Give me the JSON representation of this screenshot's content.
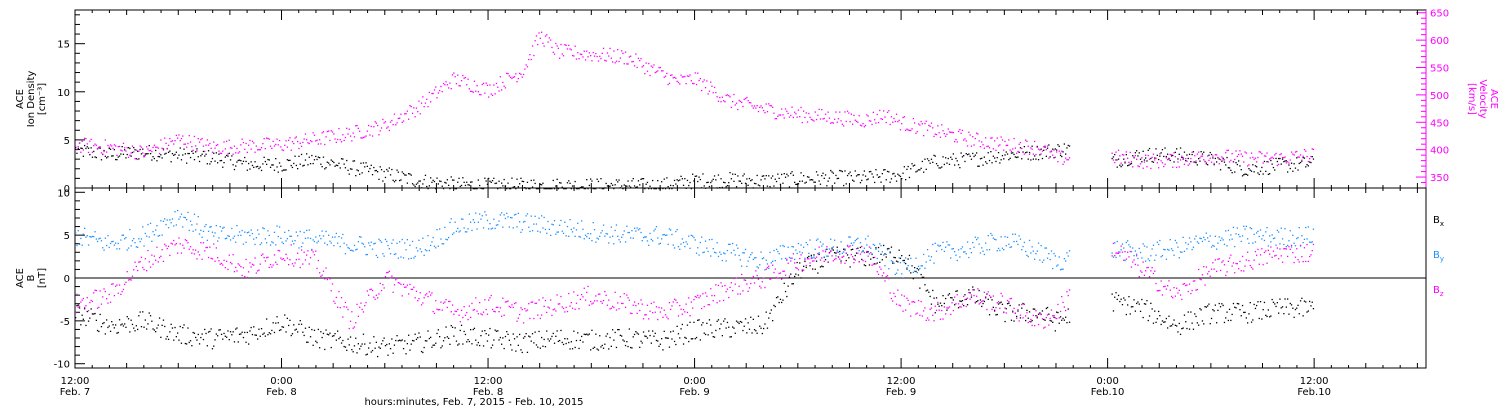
{
  "figure": {
    "xlabel": "hours:minutes, Feb.  7, 2015 - Feb. 10, 2015",
    "xticks": [
      {
        "hours": 0,
        "time": "12:00",
        "date": "Feb. 7"
      },
      {
        "hours": 12,
        "time": "0:00",
        "date": "Feb. 8"
      },
      {
        "hours": 24,
        "time": "12:00",
        "date": "Feb. 8"
      },
      {
        "hours": 36,
        "time": "0:00",
        "date": "Feb. 9"
      },
      {
        "hours": 48,
        "time": "12:00",
        "date": "Feb. 9"
      },
      {
        "hours": 60,
        "time": "0:00",
        "date": "Feb.10"
      },
      {
        "hours": 72,
        "time": "12:00",
        "date": "Feb.10"
      }
    ],
    "xlim_hours": [
      0,
      78.5
    ]
  },
  "colors": {
    "black": "#000000",
    "magenta": "#ff00ff",
    "blue": "#1e90ff"
  },
  "chart_data": [
    {
      "type": "scatter",
      "panel": "top",
      "ylabel_left": [
        "ACE",
        "Ion Density",
        "[cm⁻³]"
      ],
      "ylabel_right": [
        "ACE",
        "Velocity",
        "[km/s]"
      ],
      "yticks_left": [
        "0",
        "5",
        "10",
        "15"
      ],
      "yticks_right": [
        "350",
        "400",
        "450",
        "500",
        "550",
        "600",
        "650"
      ],
      "ylim_left": [
        0,
        18.5
      ],
      "ylim_right": [
        330,
        655
      ],
      "series": [
        {
          "axis": "left",
          "color": "black",
          "points": [
            [
              0,
              4
            ],
            [
              2,
              3.5
            ],
            [
              4,
              3.8
            ],
            [
              6,
              3.5
            ],
            [
              8,
              3.2
            ],
            [
              10,
              2.5
            ],
            [
              12,
              2.5
            ],
            [
              14,
              3
            ],
            [
              16,
              2.2
            ],
            [
              18,
              1.5
            ],
            [
              20,
              0.8
            ],
            [
              22,
              0.4
            ],
            [
              24,
              0.3
            ],
            [
              26,
              0.3
            ],
            [
              28,
              0.3
            ],
            [
              30,
              0.3
            ],
            [
              32,
              0.3
            ],
            [
              34,
              0.3
            ],
            [
              36,
              0.8
            ],
            [
              38,
              0.9
            ],
            [
              40,
              0.8
            ],
            [
              42,
              1
            ],
            [
              44,
              1.1
            ],
            [
              46,
              1.1
            ],
            [
              48,
              1.5
            ],
            [
              50,
              2.8
            ],
            [
              52,
              3
            ],
            [
              54,
              3.5
            ],
            [
              56,
              3.8
            ],
            [
              58,
              4.2
            ],
            [
              60,
              2.8
            ],
            [
              62,
              3.5
            ],
            [
              64,
              3.5
            ],
            [
              66,
              3
            ],
            [
              68,
              2
            ],
            [
              70,
              2.4
            ],
            [
              72,
              2.6
            ]
          ]
        },
        {
          "axis": "right",
          "color": "magenta",
          "points": [
            [
              0,
              410
            ],
            [
              2,
              405
            ],
            [
              4,
              395
            ],
            [
              6,
              420
            ],
            [
              8,
              405
            ],
            [
              10,
              408
            ],
            [
              12,
              410
            ],
            [
              14,
              420
            ],
            [
              16,
              430
            ],
            [
              18,
              445
            ],
            [
              20,
              480
            ],
            [
              22,
              530
            ],
            [
              24,
              510
            ],
            [
              26,
              545
            ],
            [
              27,
              610
            ],
            [
              28,
              580
            ],
            [
              30,
              575
            ],
            [
              32,
              570
            ],
            [
              34,
              540
            ],
            [
              35,
              525
            ],
            [
              36,
              530
            ],
            [
              38,
              490
            ],
            [
              40,
              475
            ],
            [
              42,
              465
            ],
            [
              44,
              460
            ],
            [
              46,
              455
            ],
            [
              47,
              465
            ],
            [
              48,
              450
            ],
            [
              50,
              435
            ],
            [
              52,
              420
            ],
            [
              54,
              410
            ],
            [
              56,
              405
            ],
            [
              57,
              385
            ],
            [
              60,
              390
            ],
            [
              62,
              380
            ],
            [
              64,
              382
            ],
            [
              66,
              390
            ],
            [
              68,
              385
            ],
            [
              70,
              385
            ],
            [
              72,
              392
            ]
          ]
        }
      ],
      "gaps_hours": [
        [
          57.8,
          60.2
        ]
      ]
    },
    {
      "type": "scatter",
      "panel": "bottom",
      "ylabel": [
        "ACE",
        "B",
        "[nT]"
      ],
      "yticks": [
        "-10",
        "-5",
        "0",
        "5",
        "10"
      ],
      "ylim": [
        -10.5,
        10.5
      ],
      "legend": [
        "B",
        "B",
        "B"
      ],
      "legend_subscripts": [
        "x",
        "y",
        "z"
      ],
      "legend_colors": [
        "black",
        "blue",
        "magenta"
      ],
      "legend_position": "right",
      "series": [
        {
          "color": "black",
          "points": [
            [
              0,
              -4
            ],
            [
              2,
              -5.5
            ],
            [
              4,
              -5
            ],
            [
              6,
              -6.5
            ],
            [
              8,
              -7
            ],
            [
              10,
              -6.5
            ],
            [
              12,
              -5
            ],
            [
              14,
              -7
            ],
            [
              16,
              -7.5
            ],
            [
              18,
              -8
            ],
            [
              20,
              -7.5
            ],
            [
              22,
              -6.5
            ],
            [
              24,
              -7
            ],
            [
              26,
              -7.5
            ],
            [
              28,
              -7
            ],
            [
              30,
              -7.2
            ],
            [
              32,
              -7
            ],
            [
              34,
              -7.3
            ],
            [
              36,
              -6
            ],
            [
              38,
              -5.8
            ],
            [
              40,
              -5.5
            ],
            [
              42,
              1
            ],
            [
              44,
              2.5
            ],
            [
              46,
              2.5
            ],
            [
              48,
              3
            ],
            [
              50,
              -3
            ],
            [
              52,
              -2
            ],
            [
              54,
              -4
            ],
            [
              56,
              -4
            ],
            [
              57,
              -5
            ],
            [
              60,
              -2.5
            ],
            [
              62,
              -3.5
            ],
            [
              64,
              -5.5
            ],
            [
              66,
              -4
            ],
            [
              68,
              -4
            ],
            [
              70,
              -3.5
            ],
            [
              72,
              -3.5
            ]
          ]
        },
        {
          "color": "blue",
          "points": [
            [
              0,
              5
            ],
            [
              2,
              4
            ],
            [
              4,
              5
            ],
            [
              6,
              7.5
            ],
            [
              8,
              5
            ],
            [
              10,
              5
            ],
            [
              12,
              5
            ],
            [
              14,
              4.5
            ],
            [
              16,
              4
            ],
            [
              18,
              3.5
            ],
            [
              20,
              3.5
            ],
            [
              22,
              6
            ],
            [
              24,
              6.8
            ],
            [
              26,
              6.5
            ],
            [
              28,
              6
            ],
            [
              30,
              5.5
            ],
            [
              32,
              5
            ],
            [
              34,
              5
            ],
            [
              36,
              4
            ],
            [
              38,
              3
            ],
            [
              40,
              2
            ],
            [
              42,
              3.5
            ],
            [
              44,
              3.5
            ],
            [
              46,
              4
            ],
            [
              48,
              1
            ],
            [
              50,
              3
            ],
            [
              52,
              3.5
            ],
            [
              54,
              4.5
            ],
            [
              56,
              3
            ],
            [
              57,
              2
            ],
            [
              60,
              3.5
            ],
            [
              62,
              3
            ],
            [
              64,
              3.5
            ],
            [
              66,
              4.5
            ],
            [
              68,
              5
            ],
            [
              70,
              4.8
            ],
            [
              72,
              5
            ]
          ]
        },
        {
          "color": "magenta",
          "points": [
            [
              0,
              -3
            ],
            [
              2,
              -2
            ],
            [
              4,
              2
            ],
            [
              6,
              4
            ],
            [
              8,
              3
            ],
            [
              10,
              1
            ],
            [
              12,
              3
            ],
            [
              14,
              2
            ],
            [
              16,
              -5
            ],
            [
              18,
              0
            ],
            [
              20,
              -2
            ],
            [
              22,
              -4
            ],
            [
              24,
              -3
            ],
            [
              26,
              -4
            ],
            [
              28,
              -3
            ],
            [
              30,
              -2
            ],
            [
              32,
              -3
            ],
            [
              34,
              -4
            ],
            [
              36,
              -3
            ],
            [
              38,
              -1
            ],
            [
              40,
              0
            ],
            [
              42,
              2
            ],
            [
              44,
              3
            ],
            [
              46,
              3
            ],
            [
              48,
              -3
            ],
            [
              50,
              -4
            ],
            [
              52,
              -2
            ],
            [
              54,
              -3
            ],
            [
              56,
              -5
            ],
            [
              57,
              -4
            ],
            [
              60,
              4
            ],
            [
              62,
              1
            ],
            [
              64,
              -2
            ],
            [
              66,
              1
            ],
            [
              68,
              2
            ],
            [
              70,
              3
            ],
            [
              72,
              3
            ]
          ]
        }
      ],
      "gaps_hours": [
        [
          57.8,
          60.2
        ]
      ]
    }
  ]
}
